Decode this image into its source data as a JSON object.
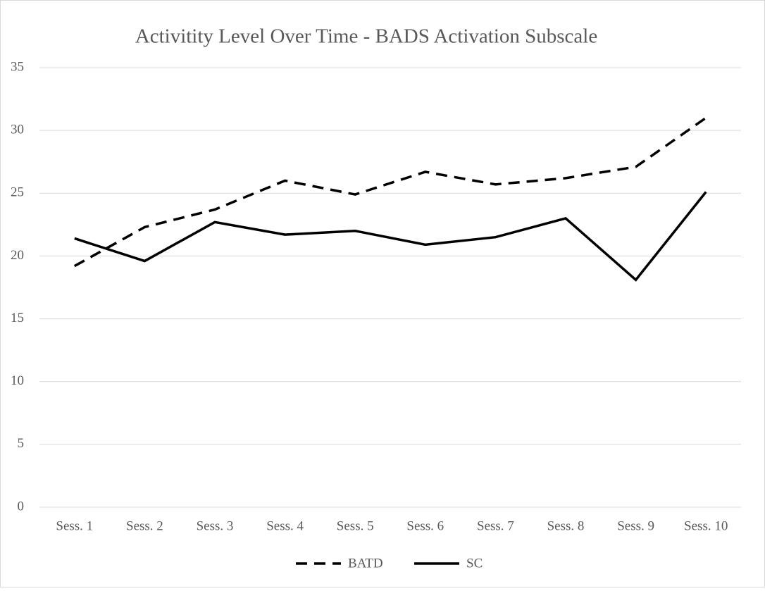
{
  "chart_data": {
    "type": "line",
    "title": "Activitity Level Over Time - BADS Activation Subscale",
    "categories": [
      "Sess. 1",
      "Sess. 2",
      "Sess. 3",
      "Sess. 4",
      "Sess. 5",
      "Sess. 6",
      "Sess. 7",
      "Sess. 8",
      "Sess. 9",
      "Sess. 10"
    ],
    "series": [
      {
        "name": "BATD",
        "color": "#000000",
        "dash": "dashed",
        "values": [
          19.2,
          22.3,
          23.7,
          26.0,
          24.9,
          26.7,
          25.7,
          26.2,
          27.1,
          31.0
        ]
      },
      {
        "name": "SC",
        "color": "#000000",
        "dash": "solid",
        "values": [
          21.4,
          19.6,
          22.7,
          21.7,
          22.0,
          20.9,
          21.5,
          23.0,
          18.1,
          25.1
        ]
      }
    ],
    "ylim": [
      0,
      35
    ],
    "yticks": [
      0,
      5,
      10,
      15,
      20,
      25,
      30,
      35
    ],
    "grid": true,
    "legend": "bottom"
  }
}
